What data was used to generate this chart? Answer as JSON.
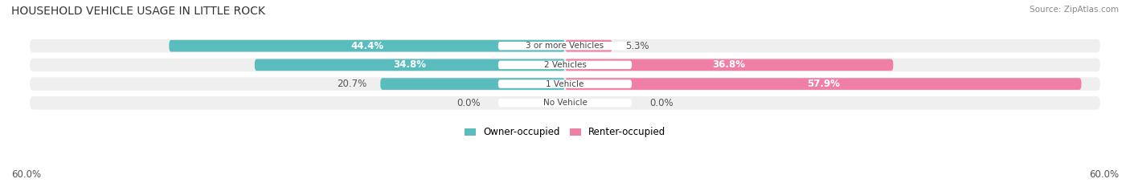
{
  "title": "HOUSEHOLD VEHICLE USAGE IN LITTLE ROCK",
  "source": "Source: ZipAtlas.com",
  "categories": [
    "No Vehicle",
    "1 Vehicle",
    "2 Vehicles",
    "3 or more Vehicles"
  ],
  "owner_values": [
    0.0,
    20.7,
    34.8,
    44.4
  ],
  "renter_values": [
    0.0,
    57.9,
    36.8,
    5.3
  ],
  "owner_color": "#5bbcbe",
  "renter_color": "#f07fa8",
  "bar_bg_color": "#efefef",
  "background_color": "#ffffff",
  "xlim_min": -62,
  "xlim_max": 62,
  "axis_label_left": "60.0%",
  "axis_label_right": "60.0%",
  "legend_owner": "Owner-occupied",
  "legend_renter": "Renter-occupied",
  "bar_height": 0.62
}
